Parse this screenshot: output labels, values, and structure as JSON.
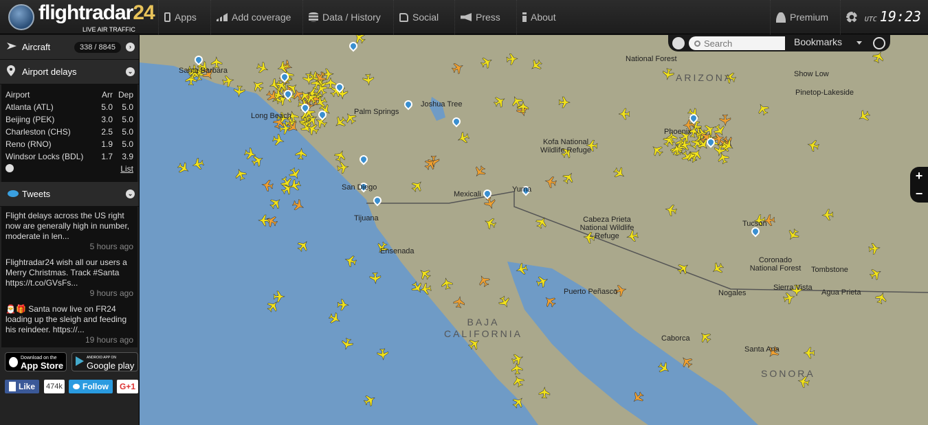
{
  "header": {
    "logo_text": "flightradar",
    "logo_num": "24",
    "logo_sub": "LIVE AIR TRAFFIC",
    "nav": [
      {
        "label": "Apps",
        "icon": "phone-icon"
      },
      {
        "label": "Add coverage",
        "icon": "signal-icon"
      },
      {
        "label": "Data / History",
        "icon": "database-icon"
      },
      {
        "label": "Social",
        "icon": "thumbs-up-icon"
      },
      {
        "label": "Press",
        "icon": "megaphone-icon"
      },
      {
        "label": "About",
        "icon": "info-icon"
      },
      {
        "label": "Premium",
        "icon": "user-icon"
      }
    ],
    "utc_label": "UTC",
    "time": "19:23"
  },
  "sidebar": {
    "aircraft": {
      "label": "Aircraft",
      "count": "338 / 8845"
    },
    "delays": {
      "label": "Airport delays",
      "headers": [
        "Airport",
        "Arr",
        "Dep"
      ],
      "rows": [
        [
          "Atlanta (ATL)",
          "5.0",
          "5.0"
        ],
        [
          "Beijing (PEK)",
          "3.0",
          "5.0"
        ],
        [
          "Charleston (CHS)",
          "2.5",
          "5.0"
        ],
        [
          "Reno (RNO)",
          "1.9",
          "5.0"
        ],
        [
          "Windsor Locks (BDL)",
          "1.7",
          "3.9"
        ]
      ],
      "list_link": "List"
    },
    "tweets": {
      "label": "Tweets",
      "items": [
        {
          "text": "Flight delays across the US right now are generally high in number, moderate in len...",
          "time": "5 hours ago"
        },
        {
          "text": "Flightradar24 wish all our users a Merry Christmas. Track #Santa https://t.co/GVsFs...",
          "time": "9 hours ago"
        },
        {
          "text": "🎅🎁 Santa now live on FR24 loading up the sleigh and feeding his reindeer. https://...",
          "time": "19 hours ago"
        }
      ]
    },
    "appstore": {
      "small": "Download on the",
      "big": "App Store"
    },
    "googleplay": {
      "small": "ANDROID APP ON",
      "big": "Google play"
    },
    "social": {
      "like": "Like",
      "like_count": "474k",
      "follow": "Follow",
      "gplus": "G+1"
    }
  },
  "map": {
    "search_placeholder": "Search",
    "bookmarks": "Bookmarks",
    "labels": [
      "Santa Barbara",
      "Long Beach",
      "Palm Springs",
      "Joshua Tree",
      "San Diego",
      "Tijuana",
      "Ensenada",
      "Mexicali",
      "Yuma",
      "Kofa National Wildlife Refuge",
      "Cabeza Prieta National Wildlife Refuge",
      "Phoenix",
      "Tucson",
      "Nogales",
      "Sierra Vista",
      "Agua Prieta",
      "Tombstone",
      "Coronado National Forest",
      "Puerto Peñasco",
      "Caborca",
      "Santa Ana",
      "Show Low",
      "Pinetop-Lakeside",
      "National Forest",
      "ARIZONA",
      "BAJA CALIFORNIA",
      "SONORA"
    ],
    "colors": {
      "land": "#aaa88c",
      "ocean": "#6f9bc6",
      "plane": "#f2e21a",
      "plane_alt": "#f0a030",
      "pin": "#3a8fd0"
    }
  }
}
